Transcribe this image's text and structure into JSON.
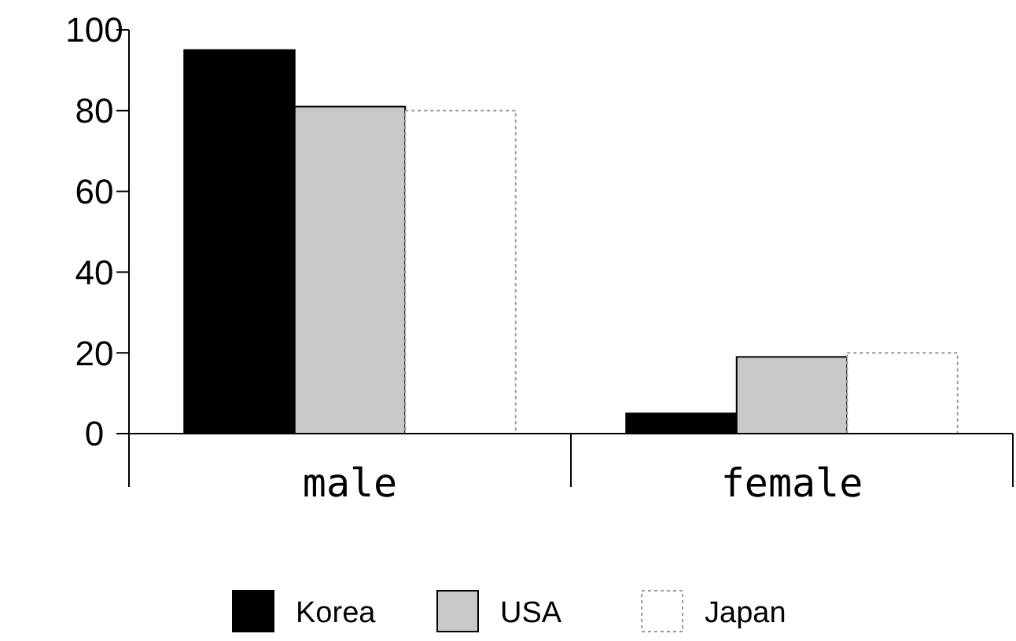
{
  "chart_data": {
    "type": "bar",
    "categories": [
      "male",
      "female"
    ],
    "series": [
      {
        "name": "Korea",
        "color": "#000000",
        "values": [
          95,
          5
        ]
      },
      {
        "name": "USA",
        "color": "#c8c8c8",
        "values": [
          81,
          19
        ]
      },
      {
        "name": "Japan",
        "color": "#ffffff",
        "values": [
          80,
          20
        ]
      }
    ],
    "ylim": [
      0,
      100
    ],
    "yticks": [
      0,
      20,
      40,
      60,
      80,
      100
    ],
    "grid": false,
    "legend": "bottom"
  }
}
